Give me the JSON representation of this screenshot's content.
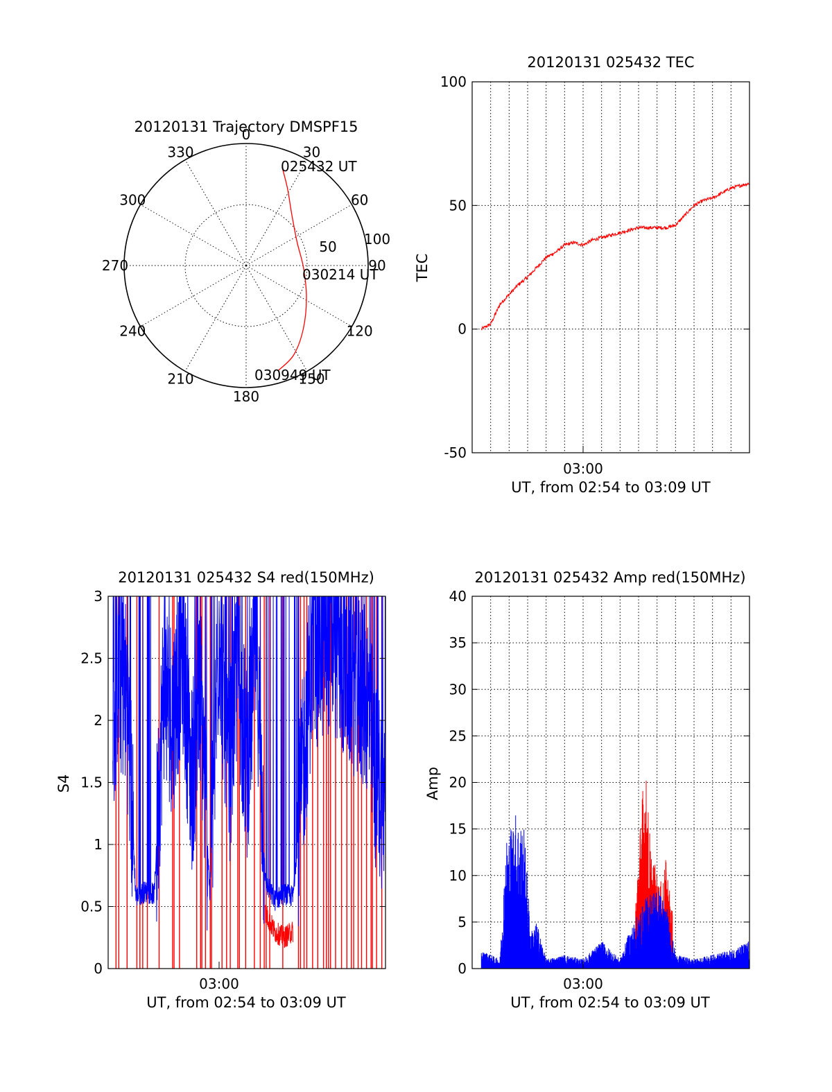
{
  "colors": {
    "red": "#ff0000",
    "blue": "#0000ff",
    "black": "#000000"
  },
  "chart_data": [
    {
      "id": "trajectory",
      "type": "polar",
      "title": "20120131 Trajectory DMSPF15",
      "azimuth_labels": [
        "0",
        "30",
        "60",
        "90",
        "120",
        "150",
        "180",
        "210",
        "240",
        "270",
        "300",
        "330"
      ],
      "radial_labels": [
        "50",
        "100"
      ],
      "rlim": [
        0,
        100
      ],
      "trajectory": {
        "color": "red",
        "points": [
          {
            "az": 20,
            "r": 86
          },
          {
            "az": 28,
            "r": 72
          },
          {
            "az": 42,
            "r": 56
          },
          {
            "az": 65,
            "r": 46
          },
          {
            "az": 92,
            "r": 47
          },
          {
            "az": 118,
            "r": 56
          },
          {
            "az": 138,
            "r": 70
          },
          {
            "az": 152,
            "r": 83
          },
          {
            "az": 163,
            "r": 90
          }
        ]
      },
      "annotations": [
        "025432 UT",
        "030214 UT",
        "030949 UT"
      ]
    },
    {
      "id": "tec",
      "type": "line",
      "title": "20120131 025432 TEC",
      "ylabel": "TEC",
      "xlabel": "UT, from 02:54 to 03:09 UT",
      "x_tick_labels": [
        "03:00"
      ],
      "xlim": [
        "02:54",
        "03:09"
      ],
      "ylim": [
        -50,
        100
      ],
      "y_ticks": [
        -50,
        0,
        50,
        100
      ],
      "grid": true,
      "series": [
        {
          "color": "red",
          "points": [
            {
              "x": "02:54:30",
              "y": 0
            },
            {
              "x": "02:55:00",
              "y": 2
            },
            {
              "x": "02:55:30",
              "y": 10
            },
            {
              "x": "02:56:00",
              "y": 14
            },
            {
              "x": "02:56:30",
              "y": 18
            },
            {
              "x": "02:57:00",
              "y": 21
            },
            {
              "x": "02:57:30",
              "y": 25
            },
            {
              "x": "02:58:00",
              "y": 29
            },
            {
              "x": "02:58:30",
              "y": 31
            },
            {
              "x": "02:59:00",
              "y": 34
            },
            {
              "x": "02:59:30",
              "y": 35
            },
            {
              "x": "03:00:00",
              "y": 34
            },
            {
              "x": "03:00:30",
              "y": 36
            },
            {
              "x": "03:01:00",
              "y": 37
            },
            {
              "x": "03:01:30",
              "y": 38
            },
            {
              "x": "03:02:00",
              "y": 39
            },
            {
              "x": "03:02:30",
              "y": 40
            },
            {
              "x": "03:03:00",
              "y": 41
            },
            {
              "x": "03:03:30",
              "y": 41
            },
            {
              "x": "03:04:00",
              "y": 41
            },
            {
              "x": "03:04:30",
              "y": 41
            },
            {
              "x": "03:05:00",
              "y": 42
            },
            {
              "x": "03:05:30",
              "y": 46
            },
            {
              "x": "03:06:00",
              "y": 50
            },
            {
              "x": "03:06:30",
              "y": 52
            },
            {
              "x": "03:07:00",
              "y": 53
            },
            {
              "x": "03:07:30",
              "y": 55
            },
            {
              "x": "03:08:00",
              "y": 57
            },
            {
              "x": "03:08:30",
              "y": 58
            },
            {
              "x": "03:09:00",
              "y": 59
            }
          ]
        }
      ]
    },
    {
      "id": "s4",
      "type": "line",
      "title": "20120131 025432 S4 red(150MHz)",
      "ylabel": "S4",
      "xlabel": "UT, from 02:54 to 03:09 UT",
      "x_tick_labels": [
        "03:00"
      ],
      "xlim": [
        "02:54",
        "03:09"
      ],
      "ylim": [
        0,
        3
      ],
      "y_ticks": [
        "0",
        "0.5",
        "1",
        "1.5",
        "2",
        "2.5",
        "3"
      ],
      "grid": true,
      "series": [
        {
          "color": "blue",
          "points": [
            {
              "x": "02:54:15",
              "y": 1.8
            },
            {
              "x": "02:54:30",
              "y": 2.4
            },
            {
              "x": "02:55:00",
              "y": 2.2
            },
            {
              "x": "02:55:30",
              "y": 0.58
            },
            {
              "x": "02:56:00",
              "y": 0.62
            },
            {
              "x": "02:56:30",
              "y": 0.6
            },
            {
              "x": "02:57:00",
              "y": 2.3
            },
            {
              "x": "02:57:30",
              "y": 2.0
            },
            {
              "x": "02:58:00",
              "y": 2.6
            },
            {
              "x": "02:58:30",
              "y": 1.5
            },
            {
              "x": "02:59:00",
              "y": 2.2
            },
            {
              "x": "02:59:30",
              "y": 0.6
            },
            {
              "x": "03:00:00",
              "y": 2.8
            },
            {
              "x": "03:00:30",
              "y": 1.5
            },
            {
              "x": "03:01:00",
              "y": 2.5
            },
            {
              "x": "03:01:30",
              "y": 1.6
            },
            {
              "x": "03:02:00",
              "y": 2.7
            },
            {
              "x": "03:02:30",
              "y": 0.7
            },
            {
              "x": "03:03:00",
              "y": 0.55
            },
            {
              "x": "03:03:30",
              "y": 0.6
            },
            {
              "x": "03:04:00",
              "y": 0.58
            },
            {
              "x": "03:05:00",
              "y": 2.5
            },
            {
              "x": "03:06:00",
              "y": 2.7
            },
            {
              "x": "03:07:00",
              "y": 2.4
            },
            {
              "x": "03:08:00",
              "y": 2.2
            },
            {
              "x": "03:08:30",
              "y": 1.5
            },
            {
              "x": "03:09:00",
              "y": 1.4
            }
          ]
        },
        {
          "color": "red",
          "points": [
            {
              "x": "03:02:30",
              "y": 0.45
            },
            {
              "x": "03:03:00",
              "y": 0.3
            },
            {
              "x": "03:03:30",
              "y": 0.25
            },
            {
              "x": "03:04:00",
              "y": 0.3
            }
          ]
        }
      ]
    },
    {
      "id": "amp",
      "type": "line",
      "title": "20120131 025432 Amp red(150MHz)",
      "ylabel": "Amp",
      "xlabel": "UT, from 02:54 to 03:09 UT",
      "x_tick_labels": [
        "03:00"
      ],
      "xlim": [
        "02:54",
        "03:09"
      ],
      "ylim": [
        0,
        40
      ],
      "y_ticks": [
        0,
        5,
        10,
        15,
        20,
        25,
        30,
        35,
        40
      ],
      "grid": true,
      "series": [
        {
          "color": "red",
          "points": [
            {
              "x": "03:02:50",
              "y": 8
            },
            {
              "x": "03:03:20",
              "y": 23
            },
            {
              "x": "03:03:40",
              "y": 13
            },
            {
              "x": "03:04:10",
              "y": 9
            },
            {
              "x": "03:04:30",
              "y": 12
            },
            {
              "x": "03:04:50",
              "y": 6
            }
          ]
        },
        {
          "color": "blue",
          "points": [
            {
              "x": "02:54:30",
              "y": 2
            },
            {
              "x": "02:55:30",
              "y": 1
            },
            {
              "x": "02:55:50",
              "y": 14
            },
            {
              "x": "02:56:20",
              "y": 17
            },
            {
              "x": "02:56:50",
              "y": 15
            },
            {
              "x": "02:57:10",
              "y": 4
            },
            {
              "x": "02:57:30",
              "y": 5
            },
            {
              "x": "02:58:00",
              "y": 1
            },
            {
              "x": "02:59:00",
              "y": 1.5
            },
            {
              "x": "03:00:00",
              "y": 1
            },
            {
              "x": "03:01:00",
              "y": 3
            },
            {
              "x": "03:02:00",
              "y": 1
            },
            {
              "x": "03:02:30",
              "y": 4
            },
            {
              "x": "03:03:00",
              "y": 6
            },
            {
              "x": "03:03:30",
              "y": 8
            },
            {
              "x": "03:04:00",
              "y": 9
            },
            {
              "x": "03:04:30",
              "y": 7
            },
            {
              "x": "03:05:00",
              "y": 1.5
            },
            {
              "x": "03:06:00",
              "y": 1
            },
            {
              "x": "03:07:00",
              "y": 1.5
            },
            {
              "x": "03:08:00",
              "y": 2
            },
            {
              "x": "03:09:00",
              "y": 3
            }
          ]
        }
      ]
    }
  ]
}
